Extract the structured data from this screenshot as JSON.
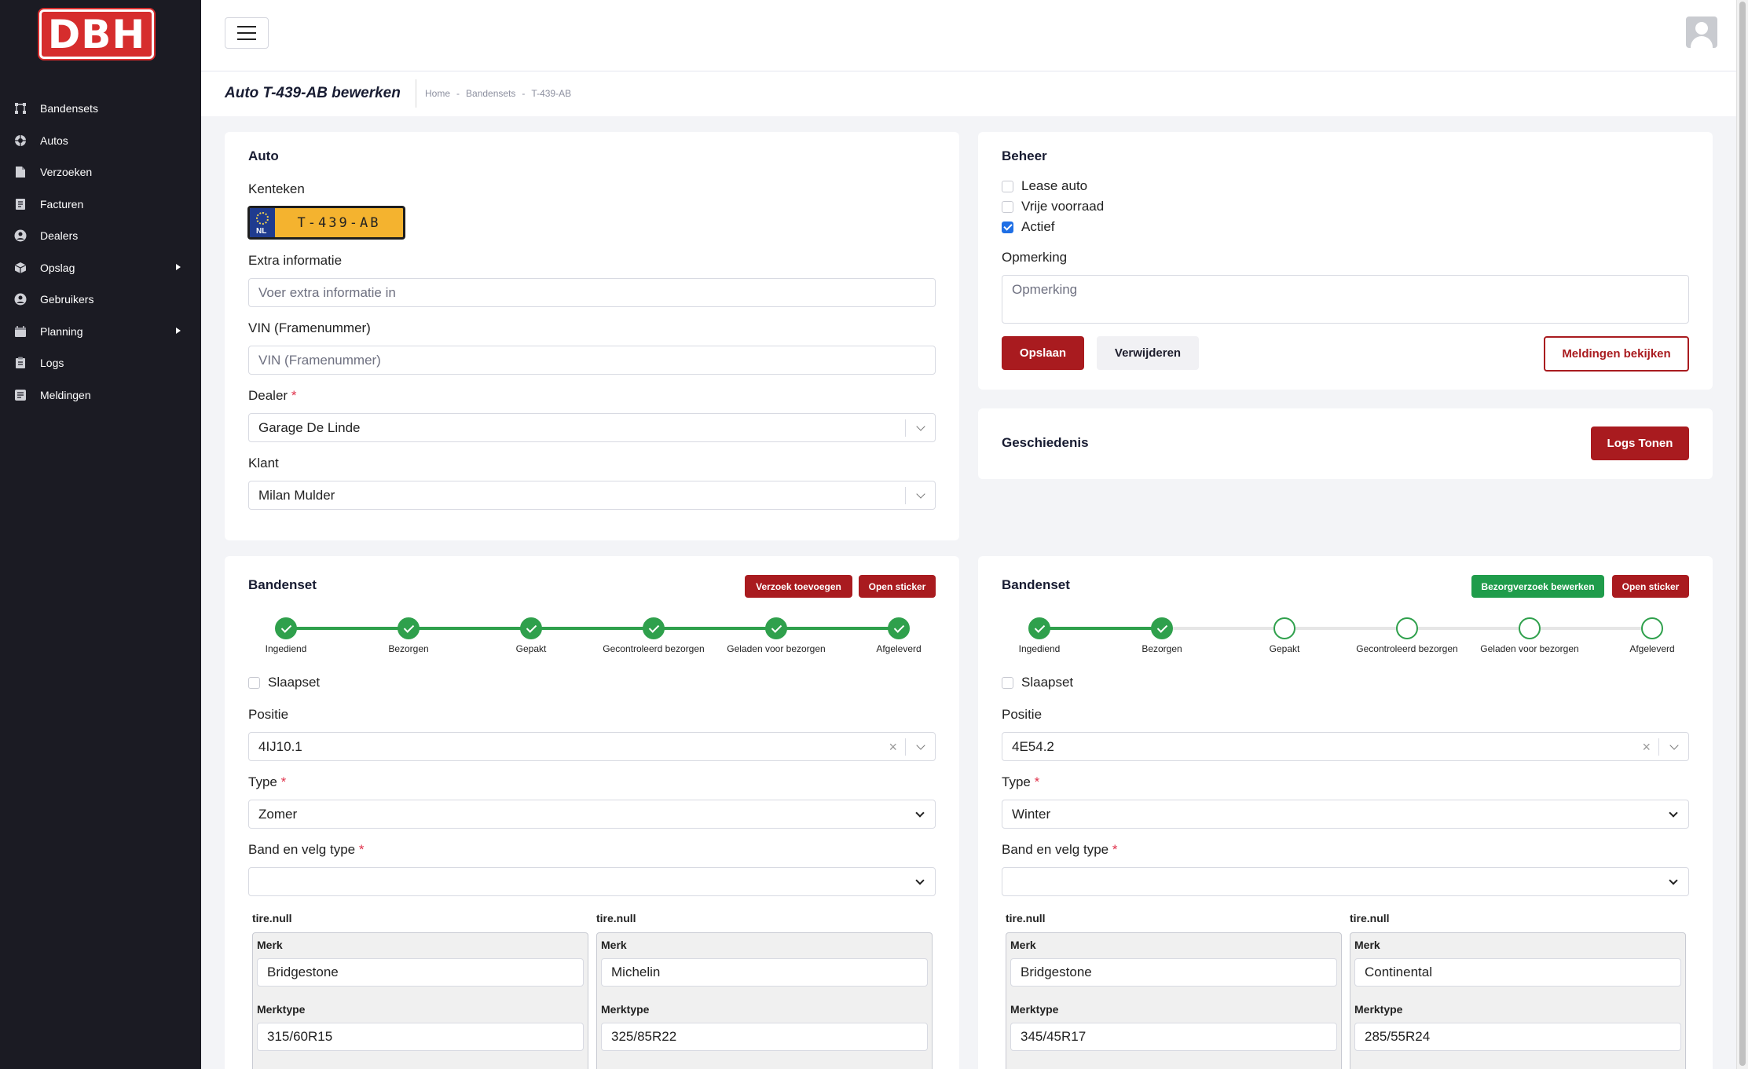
{
  "app": {
    "logo_text": "DBH"
  },
  "sidebar": {
    "items": [
      {
        "label": "Bandensets",
        "icon": "nodes-icon",
        "submenu": false
      },
      {
        "label": "Autos",
        "icon": "wheel-icon",
        "submenu": false
      },
      {
        "label": "Verzoeken",
        "icon": "document-icon",
        "submenu": false
      },
      {
        "label": "Facturen",
        "icon": "invoice-icon",
        "submenu": false
      },
      {
        "label": "Dealers",
        "icon": "user-circle-icon",
        "submenu": false
      },
      {
        "label": "Opslag",
        "icon": "box-icon",
        "submenu": true
      },
      {
        "label": "Gebruikers",
        "icon": "users-icon",
        "submenu": false
      },
      {
        "label": "Planning",
        "icon": "calendar-icon",
        "submenu": true
      },
      {
        "label": "Logs",
        "icon": "clipboard-icon",
        "submenu": false
      },
      {
        "label": "Meldingen",
        "icon": "bell-list-icon",
        "submenu": false
      }
    ]
  },
  "toolbar": {
    "title": "Auto T-439-AB bewerken",
    "breadcrumb": [
      "Home",
      "-",
      "Bandensets",
      "-",
      "T-439-AB"
    ]
  },
  "auto": {
    "title": "Auto",
    "kenteken_label": "Kenteken",
    "plate_country": "NL",
    "plate_text": "T-439-AB",
    "extra_label": "Extra informatie",
    "extra_placeholder": "Voer extra informatie in",
    "vin_label": "VIN (Framenummer)",
    "vin_placeholder": "VIN (Framenummer)",
    "dealer_label": "Dealer",
    "dealer_value": "Garage De Linde",
    "klant_label": "Klant",
    "klant_value": "Milan Mulder",
    "required_mark": "*"
  },
  "beheer": {
    "title": "Beheer",
    "checkboxes": [
      {
        "label": "Lease auto",
        "checked": false
      },
      {
        "label": "Vrije voorraad",
        "checked": false
      },
      {
        "label": "Actief",
        "checked": true
      }
    ],
    "opmerking_label": "Opmerking",
    "opmerking_placeholder": "Opmerking",
    "save": "Opslaan",
    "delete": "Verwijderen",
    "notifications": "Meldingen bekijken"
  },
  "geschiedenis": {
    "title": "Geschiedenis",
    "button": "Logs Tonen"
  },
  "bandensets": [
    {
      "title": "Bandenset",
      "buttons": [
        {
          "label": "Verzoek toevoegen",
          "style": "red"
        },
        {
          "label": "Open sticker",
          "style": "red"
        }
      ],
      "steps": [
        {
          "name": "Ingediend",
          "done": true
        },
        {
          "name": "Bezorgen",
          "done": true
        },
        {
          "name": "Gepakt",
          "done": true
        },
        {
          "name": "Gecontroleerd bezorgen",
          "done": true
        },
        {
          "name": "Geladen voor bezorgen",
          "done": true
        },
        {
          "name": "Afgeleverd",
          "done": true
        }
      ],
      "slaapset_label": "Slaapset",
      "positie_label": "Positie",
      "positie_value": "4IJ10.1",
      "type_label": "Type",
      "type_value": "Zomer",
      "band_label": "Band en velg type",
      "band_value": "",
      "tires": [
        {
          "header": "tire.null",
          "merk_label": "Merk",
          "merk": "Bridgestone",
          "merktype_label": "Merktype",
          "merktype": "315/60R15"
        },
        {
          "header": "tire.null",
          "merk_label": "Merk",
          "merk": "Michelin",
          "merktype_label": "Merktype",
          "merktype": "325/85R22"
        }
      ]
    },
    {
      "title": "Bandenset",
      "buttons": [
        {
          "label": "Bezorgverzoek bewerken",
          "style": "green"
        },
        {
          "label": "Open sticker",
          "style": "red"
        }
      ],
      "steps": [
        {
          "name": "Ingediend",
          "done": true
        },
        {
          "name": "Bezorgen",
          "done": true
        },
        {
          "name": "Gepakt",
          "done": false
        },
        {
          "name": "Gecontroleerd bezorgen",
          "done": false
        },
        {
          "name": "Geladen voor bezorgen",
          "done": false
        },
        {
          "name": "Afgeleverd",
          "done": false
        }
      ],
      "slaapset_label": "Slaapset",
      "positie_label": "Positie",
      "positie_value": "4E54.2",
      "type_label": "Type",
      "type_value": "Winter",
      "band_label": "Band en velg type",
      "band_value": "",
      "tires": [
        {
          "header": "tire.null",
          "merk_label": "Merk",
          "merk": "Bridgestone",
          "merktype_label": "Merktype",
          "merktype": "345/45R17"
        },
        {
          "header": "tire.null",
          "merk_label": "Merk",
          "merk": "Continental",
          "merktype_label": "Merktype",
          "merktype": "285/55R24"
        }
      ]
    }
  ],
  "colors": {
    "brand_red": "#a91b1f",
    "success_green": "#2fa04c",
    "sidebar_bg": "#1b1b23",
    "plate_yellow": "#f4b32f"
  }
}
